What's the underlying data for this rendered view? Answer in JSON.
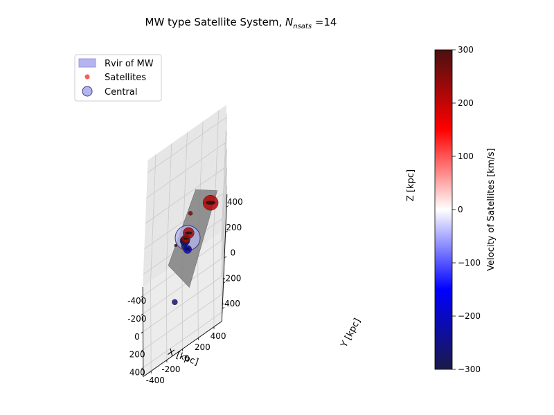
{
  "chart_data": {
    "type": "scatter",
    "title_prefix": "MW type Satellite System, ",
    "title_sym": "N",
    "title_sub": "nsats",
    "title_suffix": " =14",
    "xlabel": "X [kpc]",
    "ylabel": "Y [kpc]",
    "zlabel": "Z [kpc]",
    "x_ticks": [
      -400,
      -200,
      0,
      200,
      400
    ],
    "y_ticks": [
      -400,
      -200,
      0,
      200,
      400
    ],
    "z_ticks": [
      -400,
      -200,
      0,
      200,
      400
    ],
    "grid": true,
    "legend": {
      "placement": "top-left",
      "entries": [
        "Rvir of MW",
        "Satellites",
        "Central"
      ]
    },
    "colorbar": {
      "label": "Velocity of Satellites [km/s]",
      "min": -300,
      "max": 300,
      "ticks": [
        -300,
        -200,
        -100,
        0,
        100,
        200,
        300
      ],
      "colors": [
        "#1a1a4a",
        "#0000ff",
        "#ffffff",
        "#ff0000",
        "#4a1010"
      ]
    },
    "colors": {
      "rvir": "#b4b4ee",
      "satellite": "#ff5a5a",
      "plane": "#808080",
      "pane": "#ebebeb"
    },
    "satellites": [
      {
        "x": 300,
        "y": 300,
        "z": 380,
        "v": 210,
        "size": 11
      },
      {
        "x": 150,
        "y": 50,
        "z": 300,
        "v": 250,
        "size": 3
      },
      {
        "x": 80,
        "y": 40,
        "z": 100,
        "v": 230,
        "size": 8
      },
      {
        "x": 40,
        "y": 10,
        "z": 40,
        "v": 240,
        "size": 6
      },
      {
        "x": 20,
        "y": 20,
        "z": 20,
        "v": 200,
        "size": 5
      },
      {
        "x": 0,
        "y": 0,
        "z": 0,
        "v": -280,
        "size": 7
      },
      {
        "x": -20,
        "y": 0,
        "z": -20,
        "v": -250,
        "size": 6
      },
      {
        "x": -20,
        "y": 40,
        "z": -100,
        "v": -220,
        "size": 6
      },
      {
        "x": -60,
        "y": 20,
        "z": -110,
        "v": -200,
        "size": 3
      },
      {
        "x": -80,
        "y": 60,
        "z": -140,
        "v": -190,
        "size": 2
      },
      {
        "x": -150,
        "y": 0,
        "z": -120,
        "v": -260,
        "size": 5
      },
      {
        "x": -150,
        "y": 0,
        "z": -150,
        "v": -270,
        "size": 4
      },
      {
        "x": 0,
        "y": -100,
        "z": -440,
        "v": -270,
        "size": 4
      },
      {
        "x": -320,
        "y": -100,
        "z": -220,
        "v": 280,
        "size": 2
      }
    ],
    "central": {
      "x": 0,
      "y": 0,
      "z": 0,
      "rvir_size": 18
    },
    "plane_corners": [
      {
        "x": -430,
        "y": -180,
        "z": -420
      },
      {
        "x": 60,
        "y": 80,
        "z": -360
      },
      {
        "x": 300,
        "y": 380,
        "z": 440
      },
      {
        "x": -100,
        "y": 120,
        "z": 280
      }
    ]
  }
}
